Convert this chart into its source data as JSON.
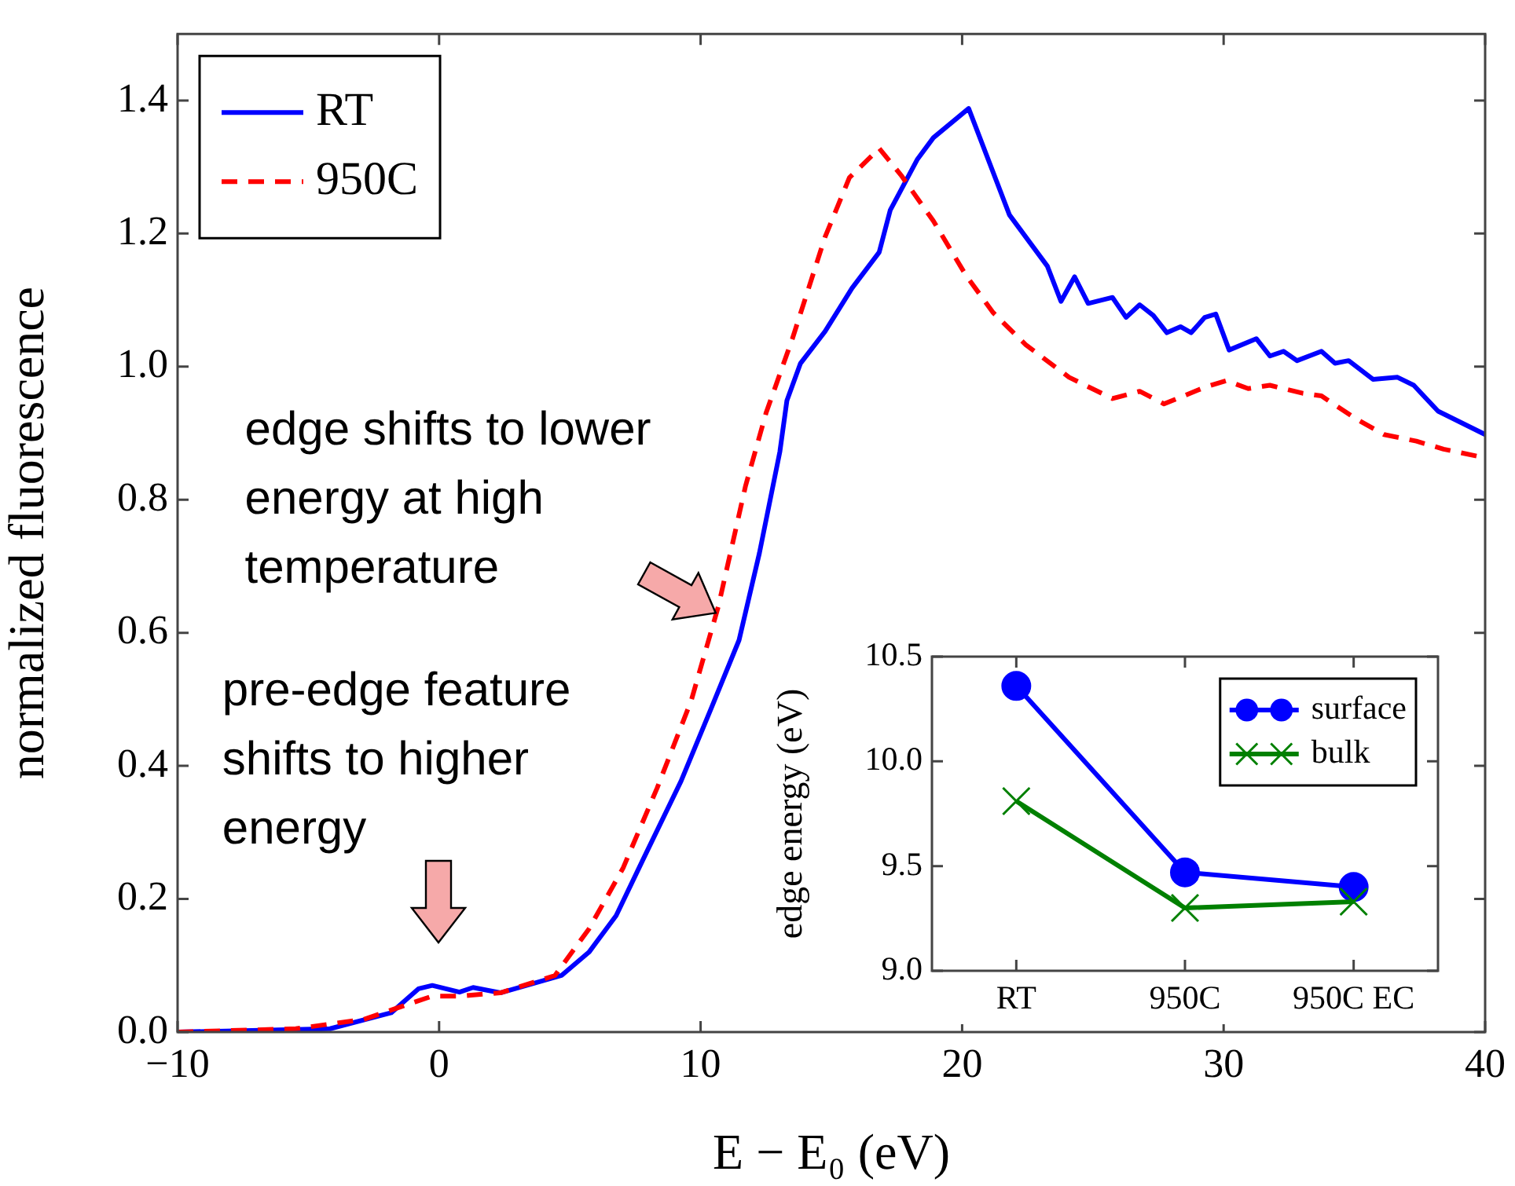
{
  "chart_data": [
    {
      "type": "line",
      "xlabel": "E − E₀ (eV)",
      "ylabel": "normalized fluorescence",
      "xlim": [
        -10,
        40
      ],
      "ylim": [
        0,
        1.5
      ],
      "xticks": [
        {
          "value": -10,
          "label": "−10"
        },
        0,
        10,
        20,
        30,
        40
      ],
      "yticks": [
        {
          "value": 0,
          "label": "0.0"
        },
        0.2,
        0.4,
        0.6,
        0.8,
        {
          "value": 1,
          "label": "1.0"
        },
        1.2,
        1.4
      ],
      "legend": "top left",
      "grid": false,
      "series": [
        {
          "name": "RT",
          "color": "#0000ff",
          "line_style": "solid",
          "x": [
            -10,
            -4.17,
            -1.83,
            -0.79,
            -0.26,
            0.78,
            1.3,
            2.34,
            4.68,
            5.73,
            6.77,
            7.82,
            9.25,
            10.42,
            11.47,
            12.25,
            13.03,
            13.3,
            13.82,
            14.76,
            15.79,
            16.83,
            17.25,
            18.28,
            18.9,
            20.25,
            21.81,
            23.26,
            23.78,
            24.3,
            24.82,
            25.75,
            26.27,
            26.79,
            27.31,
            27.83,
            28.35,
            28.76,
            29.28,
            29.7,
            30.21,
            31.25,
            31.77,
            32.29,
            32.81,
            33.74,
            34.26,
            34.78,
            35.71,
            36.65,
            37.27,
            38.2,
            40
          ],
          "values": [
            0,
            0.005,
            0.029,
            0.065,
            0.07,
            0.06,
            0.067,
            0.059,
            0.085,
            0.12,
            0.175,
            0.261,
            0.377,
            0.488,
            0.589,
            0.72,
            0.872,
            0.949,
            1.005,
            1.053,
            1.118,
            1.172,
            1.235,
            1.311,
            1.344,
            1.388,
            1.228,
            1.151,
            1.098,
            1.135,
            1.095,
            1.104,
            1.074,
            1.093,
            1.077,
            1.051,
            1.06,
            1.051,
            1.074,
            1.079,
            1.025,
            1.042,
            1.016,
            1.023,
            1.009,
            1.023,
            1.005,
            1.009,
            0.981,
            0.984,
            0.972,
            0.933,
            0.898
          ]
        },
        {
          "name": "950C",
          "color": "#ff0000",
          "line_style": "dashed",
          "x": [
            -10,
            -5.48,
            -2.88,
            -1.32,
            -0.26,
            0.78,
            2.34,
            4.43,
            5.73,
            7.03,
            8.34,
            9.64,
            10.68,
            11.72,
            12.5,
            13.51,
            14.76,
            15.69,
            16.83,
            17.66,
            18.9,
            20.15,
            21.19,
            22.43,
            24.09,
            25.75,
            26.79,
            27.72,
            29.28,
            30.11,
            30.94,
            31.77,
            33.02,
            33.74,
            35.09,
            36.13,
            37.37,
            38.41,
            40
          ],
          "values": [
            0,
            0.005,
            0.019,
            0.04,
            0.054,
            0.054,
            0.059,
            0.085,
            0.155,
            0.246,
            0.367,
            0.498,
            0.64,
            0.821,
            0.93,
            1.042,
            1.195,
            1.284,
            1.328,
            1.288,
            1.219,
            1.137,
            1.081,
            1.033,
            0.984,
            0.952,
            0.963,
            0.944,
            0.969,
            0.979,
            0.967,
            0.972,
            0.96,
            0.956,
            0.921,
            0.898,
            0.888,
            0.876,
            0.863
          ]
        }
      ],
      "annotations": [
        {
          "text": "edge shifts to lower energy at high temperature",
          "x": 10.6,
          "y": 0.63
        },
        {
          "text": "pre-edge feature shifts to higher energy",
          "x": 0,
          "y": 0.07
        }
      ]
    },
    {
      "type": "line",
      "ylabel": "edge energy (eV)",
      "categories": [
        "RT",
        "950C",
        "950C EC"
      ],
      "ylim": [
        9.0,
        10.5
      ],
      "yticks": [
        {
          "value": 9,
          "label": "9.0"
        },
        9.5,
        {
          "value": 10,
          "label": "10.0"
        },
        10.5
      ],
      "legend": "top right",
      "grid": false,
      "series": [
        {
          "name": "surface",
          "color": "#0000ff",
          "marker": "circle",
          "values": [
            10.36,
            9.47,
            9.4
          ]
        },
        {
          "name": "bulk",
          "color": "#008000",
          "marker": "cross",
          "values": [
            9.81,
            9.3,
            9.33
          ]
        }
      ]
    }
  ]
}
